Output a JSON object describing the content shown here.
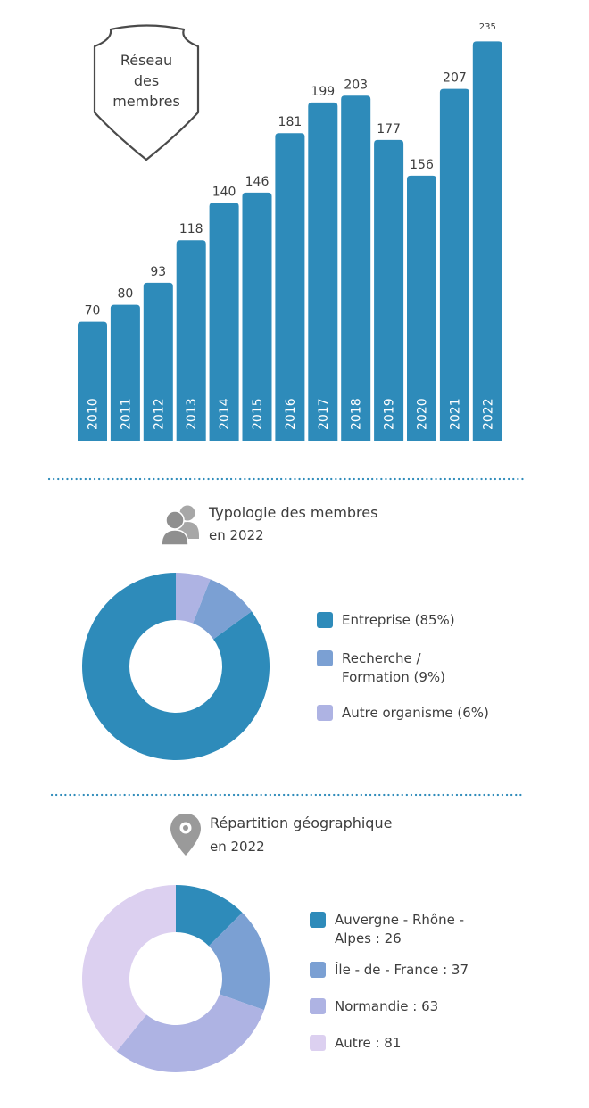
{
  "colors": {
    "bar": "#2e8bba",
    "divider": "#2e8bba",
    "text": "#3d3d3d",
    "icon": "#9a9a9a",
    "legend_label": "#3d3d3d"
  },
  "badge": {
    "line1": "Réseau",
    "line2": "des",
    "line3": "membres"
  },
  "sections": {
    "typology": {
      "title": "Typologie des membres",
      "subtitle": "en 2022",
      "icon": "people-icon"
    },
    "geography": {
      "title": "Répartition géographique",
      "subtitle": "en 2022",
      "icon": "map-pin-icon"
    }
  },
  "chart_data": [
    {
      "type": "bar",
      "title": "Réseau des membres",
      "categories": [
        "2010",
        "2011",
        "2012",
        "2013",
        "2014",
        "2015",
        "2016",
        "2017",
        "2018",
        "2019",
        "2020",
        "2021",
        "2022"
      ],
      "values": [
        70,
        80,
        93,
        118,
        140,
        146,
        181,
        199,
        203,
        177,
        156,
        207,
        235
      ],
      "data_labels": [
        "70",
        "80",
        "93",
        "118",
        "140",
        "146",
        "181",
        "199",
        "203",
        "177",
        "156",
        "207",
        "235"
      ],
      "ylim": [
        0,
        235
      ],
      "grid": false
    },
    {
      "type": "pie",
      "variant": "donut",
      "title": "Typologie des membres",
      "subtitle": "en 2022",
      "categories": [
        "Entreprise (85%)",
        "Recherche / Formation (9%)",
        "Autre organisme (6%)"
      ],
      "legend_lines": [
        [
          "Entreprise (85%)"
        ],
        [
          "Recherche /",
          "Formation (9%)"
        ],
        [
          "Autre organisme (6%)"
        ]
      ],
      "values": [
        85,
        9,
        6
      ],
      "colors": [
        "#2e8bba",
        "#7ba0d3",
        "#aeb3e3"
      ],
      "legend": "right"
    },
    {
      "type": "pie",
      "variant": "donut",
      "title": "Répartition géographique",
      "subtitle": "en 2022",
      "categories": [
        "Auvergne - Rhône - Alpes : 26",
        "Île - de - France : 37",
        "Normandie : 63",
        "Autre : 81"
      ],
      "legend_lines": [
        [
          "Auvergne - Rhône -",
          "Alpes : 26"
        ],
        [
          "Île - de - France : 37"
        ],
        [
          "Normandie : 63"
        ],
        [
          "Autre : 81"
        ]
      ],
      "values": [
        26,
        37,
        63,
        81
      ],
      "colors": [
        "#2e8bba",
        "#7ba0d3",
        "#aeb3e3",
        "#dcd0f0"
      ],
      "legend": "right"
    }
  ]
}
